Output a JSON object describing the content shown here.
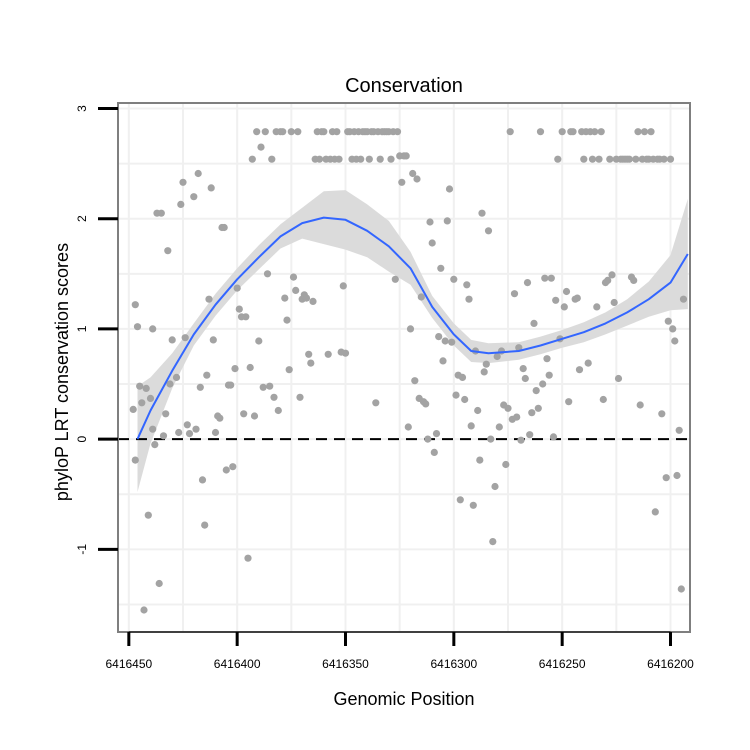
{
  "chart_data": {
    "type": "scatter",
    "title": "Conservation",
    "xlabel": "Genomic Position",
    "ylabel": "phyloP LRT conservation scores",
    "x_reversed": true,
    "xlim": [
      6416455,
      6416191
    ],
    "ylim": [
      -1.75,
      3.05
    ],
    "x_ticks": [
      6416450,
      6416400,
      6416350,
      6416300,
      6416250,
      6416200
    ],
    "y_ticks": [
      -1,
      0,
      1,
      2,
      3
    ],
    "grid": true,
    "reference_line": {
      "y": 0,
      "style": "dashed"
    },
    "colors": {
      "points": "#a3a3a3",
      "smooth": "#3366ff",
      "band": "#d9d9d9",
      "grid": "#f0f0f0",
      "border": "#7f7f7f"
    },
    "series": [
      {
        "kind": "points",
        "points": [
          [
            6416448,
            0.27
          ],
          [
            6416447,
            -0.19
          ],
          [
            6416447,
            1.22
          ],
          [
            6416446,
            1.02
          ],
          [
            6416445,
            0.48
          ],
          [
            6416444,
            0.33
          ],
          [
            6416443,
            -1.55
          ],
          [
            6416442,
            0.46
          ],
          [
            6416441,
            -0.69
          ],
          [
            6416440,
            0.37
          ],
          [
            6416439,
            0.09
          ],
          [
            6416439,
            1.0
          ],
          [
            6416438,
            -0.05
          ],
          [
            6416437,
            2.05
          ],
          [
            6416436,
            -1.31
          ],
          [
            6416435,
            2.05
          ],
          [
            6416434,
            0.03
          ],
          [
            6416433,
            0.23
          ],
          [
            6416432,
            1.71
          ],
          [
            6416431,
            0.5
          ],
          [
            6416430,
            0.9
          ],
          [
            6416428,
            0.56
          ],
          [
            6416427,
            0.06
          ],
          [
            6416426,
            2.13
          ],
          [
            6416425,
            2.33
          ],
          [
            6416424,
            0.92
          ],
          [
            6416423,
            0.13
          ],
          [
            6416422,
            0.05
          ],
          [
            6416420,
            2.2
          ],
          [
            6416419,
            0.09
          ],
          [
            6416418,
            2.41
          ],
          [
            6416417,
            0.47
          ],
          [
            6416416,
            -0.37
          ],
          [
            6416415,
            -0.78
          ],
          [
            6416414,
            0.58
          ],
          [
            6416413,
            1.27
          ],
          [
            6416412,
            2.28
          ],
          [
            6416411,
            0.9
          ],
          [
            6416410,
            0.06
          ],
          [
            6416409,
            0.21
          ],
          [
            6416408,
            0.19
          ],
          [
            6416407,
            1.92
          ],
          [
            6416406,
            1.92
          ],
          [
            6416405,
            -0.28
          ],
          [
            6416404,
            0.49
          ],
          [
            6416403,
            0.49
          ],
          [
            6416402,
            -0.25
          ],
          [
            6416401,
            0.64
          ],
          [
            6416400,
            1.37
          ],
          [
            6416399,
            1.18
          ],
          [
            6416398,
            1.11
          ],
          [
            6416397,
            0.23
          ],
          [
            6416396,
            1.11
          ],
          [
            6416395,
            -1.08
          ],
          [
            6416394,
            0.65
          ],
          [
            6416393,
            2.54
          ],
          [
            6416392,
            0.21
          ],
          [
            6416391,
            2.79
          ],
          [
            6416390,
            0.89
          ],
          [
            6416389,
            2.65
          ],
          [
            6416388,
            0.47
          ],
          [
            6416387,
            2.79
          ],
          [
            6416386,
            1.5
          ],
          [
            6416385,
            0.48
          ],
          [
            6416384,
            2.54
          ],
          [
            6416383,
            0.38
          ],
          [
            6416382,
            2.79
          ],
          [
            6416381,
            0.26
          ],
          [
            6416380,
            2.79
          ],
          [
            6416379,
            2.79
          ],
          [
            6416378,
            1.28
          ],
          [
            6416377,
            1.08
          ],
          [
            6416376,
            0.63
          ],
          [
            6416375,
            2.79
          ],
          [
            6416374,
            1.47
          ],
          [
            6416373,
            1.35
          ],
          [
            6416372,
            2.79
          ],
          [
            6416371,
            0.38
          ],
          [
            6416370,
            1.27
          ],
          [
            6416369,
            1.31
          ],
          [
            6416368,
            1.28
          ],
          [
            6416367,
            0.77
          ],
          [
            6416366,
            0.69
          ],
          [
            6416365,
            1.25
          ],
          [
            6416364,
            2.54
          ],
          [
            6416363,
            2.79
          ],
          [
            6416362,
            2.54
          ],
          [
            6416361,
            2.79
          ],
          [
            6416360,
            2.79
          ],
          [
            6416359,
            2.54
          ],
          [
            6416358,
            0.77
          ],
          [
            6416357,
            2.54
          ],
          [
            6416356,
            2.79
          ],
          [
            6416355,
            2.54
          ],
          [
            6416354,
            2.79
          ],
          [
            6416353,
            2.54
          ],
          [
            6416352,
            0.79
          ],
          [
            6416351,
            1.39
          ],
          [
            6416350,
            0.78
          ],
          [
            6416349,
            2.79
          ],
          [
            6416348,
            2.79
          ],
          [
            6416347,
            2.54
          ],
          [
            6416346,
            2.79
          ],
          [
            6416345,
            2.54
          ],
          [
            6416344,
            2.79
          ],
          [
            6416343,
            2.54
          ],
          [
            6416342,
            2.79
          ],
          [
            6416341,
            2.79
          ],
          [
            6416340,
            2.79
          ],
          [
            6416339,
            2.54
          ],
          [
            6416338,
            2.79
          ],
          [
            6416337,
            2.79
          ],
          [
            6416336,
            0.33
          ],
          [
            6416335,
            2.79
          ],
          [
            6416334,
            2.54
          ],
          [
            6416333,
            2.79
          ],
          [
            6416332,
            2.79
          ],
          [
            6416331,
            2.79
          ],
          [
            6416330,
            2.79
          ],
          [
            6416329,
            2.54
          ],
          [
            6416328,
            2.79
          ],
          [
            6416327,
            1.45
          ],
          [
            6416326,
            2.79
          ],
          [
            6416325,
            2.57
          ],
          [
            6416324,
            2.33
          ],
          [
            6416323,
            2.57
          ],
          [
            6416322,
            2.57
          ],
          [
            6416321,
            0.11
          ],
          [
            6416320,
            1.0
          ],
          [
            6416319,
            2.41
          ],
          [
            6416318,
            0.53
          ],
          [
            6416317,
            2.36
          ],
          [
            6416316,
            0.37
          ],
          [
            6416315,
            1.29
          ],
          [
            6416314,
            0.34
          ],
          [
            6416313,
            0.32
          ],
          [
            6416312,
            0.0
          ],
          [
            6416311,
            1.97
          ],
          [
            6416310,
            1.78
          ],
          [
            6416309,
            -0.12
          ],
          [
            6416308,
            0.05
          ],
          [
            6416307,
            0.93
          ],
          [
            6416306,
            1.55
          ],
          [
            6416305,
            0.71
          ],
          [
            6416304,
            0.89
          ],
          [
            6416303,
            1.98
          ],
          [
            6416302,
            2.27
          ],
          [
            6416301,
            0.88
          ],
          [
            6416300,
            1.45
          ],
          [
            6416299,
            0.4
          ],
          [
            6416298,
            0.58
          ],
          [
            6416297,
            -0.55
          ],
          [
            6416296,
            0.56
          ],
          [
            6416295,
            0.36
          ],
          [
            6416294,
            1.4
          ],
          [
            6416293,
            1.27
          ],
          [
            6416292,
            0.12
          ],
          [
            6416291,
            -0.6
          ],
          [
            6416290,
            0.8
          ],
          [
            6416289,
            0.26
          ],
          [
            6416288,
            -0.19
          ],
          [
            6416287,
            2.05
          ],
          [
            6416286,
            0.61
          ],
          [
            6416285,
            0.68
          ],
          [
            6416284,
            1.89
          ],
          [
            6416283,
            0.0
          ],
          [
            6416282,
            -0.93
          ],
          [
            6416281,
            -0.43
          ],
          [
            6416280,
            0.75
          ],
          [
            6416279,
            0.11
          ],
          [
            6416278,
            0.8
          ],
          [
            6416277,
            0.31
          ],
          [
            6416276,
            -0.23
          ],
          [
            6416275,
            0.28
          ],
          [
            6416274,
            2.79
          ],
          [
            6416273,
            0.18
          ],
          [
            6416272,
            1.32
          ],
          [
            6416271,
            0.2
          ],
          [
            6416270,
            0.83
          ],
          [
            6416269,
            -0.01
          ],
          [
            6416268,
            0.64
          ],
          [
            6416267,
            0.55
          ],
          [
            6416266,
            1.42
          ],
          [
            6416265,
            0.04
          ],
          [
            6416264,
            0.24
          ],
          [
            6416263,
            1.05
          ],
          [
            6416262,
            0.44
          ],
          [
            6416261,
            0.28
          ],
          [
            6416260,
            2.79
          ],
          [
            6416259,
            0.5
          ],
          [
            6416258,
            1.46
          ],
          [
            6416257,
            0.73
          ],
          [
            6416256,
            0.58
          ],
          [
            6416255,
            1.46
          ],
          [
            6416254,
            0.02
          ],
          [
            6416253,
            1.26
          ],
          [
            6416252,
            2.54
          ],
          [
            6416251,
            0.91
          ],
          [
            6416250,
            2.79
          ],
          [
            6416249,
            1.2
          ],
          [
            6416248,
            1.34
          ],
          [
            6416247,
            0.34
          ],
          [
            6416246,
            2.79
          ],
          [
            6416245,
            2.79
          ],
          [
            6416244,
            1.27
          ],
          [
            6416243,
            1.28
          ],
          [
            6416242,
            0.63
          ],
          [
            6416241,
            2.79
          ],
          [
            6416240,
            2.54
          ],
          [
            6416239,
            2.79
          ],
          [
            6416238,
            0.69
          ],
          [
            6416237,
            2.79
          ],
          [
            6416236,
            2.54
          ],
          [
            6416235,
            2.79
          ],
          [
            6416234,
            1.2
          ],
          [
            6416233,
            2.54
          ],
          [
            6416232,
            2.79
          ],
          [
            6416231,
            0.36
          ],
          [
            6416230,
            1.42
          ],
          [
            6416229,
            1.44
          ],
          [
            6416228,
            2.54
          ],
          [
            6416227,
            1.49
          ],
          [
            6416226,
            1.24
          ],
          [
            6416225,
            2.54
          ],
          [
            6416224,
            0.55
          ],
          [
            6416223,
            2.54
          ],
          [
            6416222,
            2.54
          ],
          [
            6416221,
            2.54
          ],
          [
            6416220,
            2.54
          ],
          [
            6416219,
            2.54
          ],
          [
            6416218,
            1.47
          ],
          [
            6416217,
            1.44
          ],
          [
            6416216,
            2.54
          ],
          [
            6416215,
            2.79
          ],
          [
            6416214,
            0.31
          ],
          [
            6416213,
            2.54
          ],
          [
            6416212,
            2.79
          ],
          [
            6416211,
            2.54
          ],
          [
            6416210,
            2.54
          ],
          [
            6416209,
            2.79
          ],
          [
            6416208,
            2.54
          ],
          [
            6416207,
            -0.66
          ],
          [
            6416206,
            2.54
          ],
          [
            6416205,
            2.54
          ],
          [
            6416204,
            0.23
          ],
          [
            6416203,
            2.54
          ],
          [
            6416202,
            -0.35
          ],
          [
            6416201,
            1.07
          ],
          [
            6416200,
            2.54
          ],
          [
            6416199,
            1.0
          ],
          [
            6416198,
            0.89
          ],
          [
            6416197,
            -0.33
          ],
          [
            6416196,
            0.08
          ],
          [
            6416195,
            -1.36
          ],
          [
            6416194,
            1.27
          ]
        ]
      },
      {
        "kind": "smooth",
        "points": [
          [
            6416446,
            0.0
          ],
          [
            6416440,
            0.26
          ],
          [
            6416430,
            0.62
          ],
          [
            6416420,
            0.95
          ],
          [
            6416410,
            1.22
          ],
          [
            6416400,
            1.45
          ],
          [
            6416390,
            1.65
          ],
          [
            6416380,
            1.84
          ],
          [
            6416370,
            1.96
          ],
          [
            6416360,
            2.01
          ],
          [
            6416350,
            1.99
          ],
          [
            6416340,
            1.89
          ],
          [
            6416330,
            1.75
          ],
          [
            6416320,
            1.55
          ],
          [
            6416310,
            1.2
          ],
          [
            6416300,
            0.95
          ],
          [
            6416292,
            0.8
          ],
          [
            6416284,
            0.78
          ],
          [
            6416270,
            0.8
          ],
          [
            6416260,
            0.85
          ],
          [
            6416250,
            0.91
          ],
          [
            6416240,
            0.97
          ],
          [
            6416230,
            1.05
          ],
          [
            6416220,
            1.15
          ],
          [
            6416210,
            1.27
          ],
          [
            6416200,
            1.42
          ],
          [
            6416192,
            1.68
          ]
        ],
        "upper": [
          0.48,
          0.56,
          0.78,
          1.05,
          1.32,
          1.55,
          1.76,
          1.95,
          2.1,
          2.25,
          2.26,
          2.13,
          1.98,
          1.7,
          1.3,
          1.05,
          0.9,
          0.87,
          0.88,
          0.93,
          0.99,
          1.06,
          1.15,
          1.27,
          1.43,
          1.67,
          2.18
        ],
        "lower": [
          -0.48,
          -0.04,
          0.46,
          0.85,
          1.12,
          1.35,
          1.54,
          1.73,
          1.82,
          1.77,
          1.72,
          1.65,
          1.52,
          1.4,
          1.1,
          0.85,
          0.7,
          0.69,
          0.72,
          0.77,
          0.83,
          0.88,
          0.95,
          1.03,
          1.11,
          1.17,
          1.18
        ]
      }
    ]
  }
}
